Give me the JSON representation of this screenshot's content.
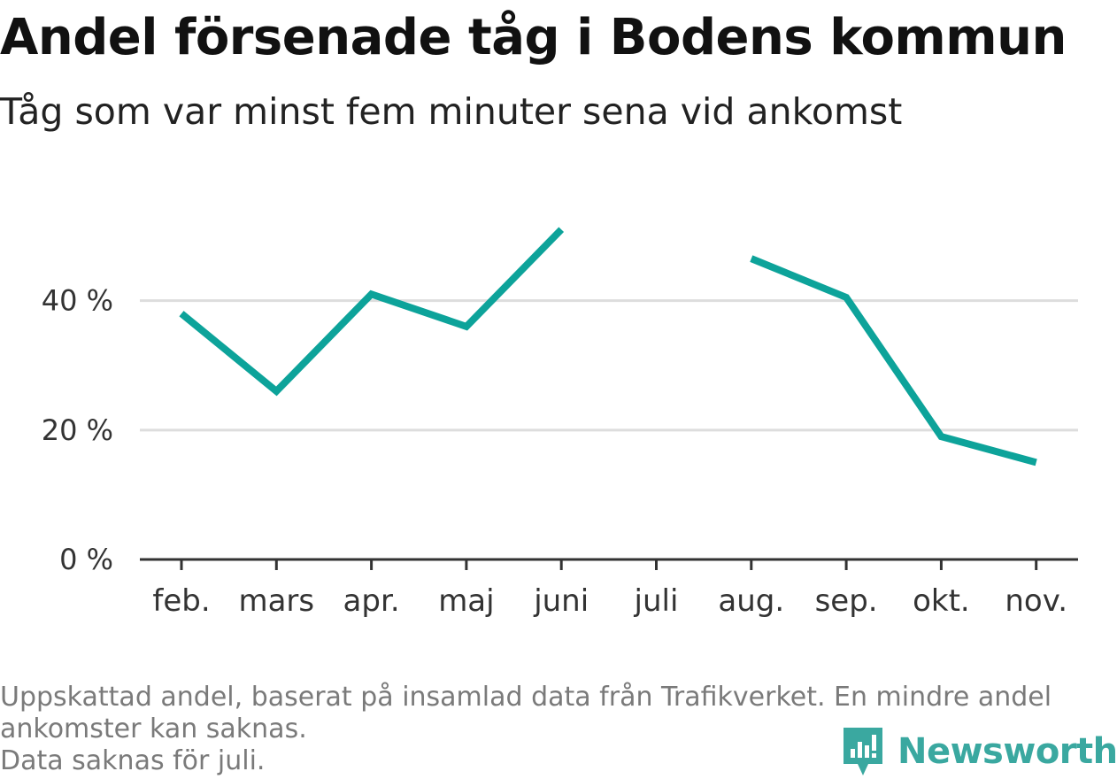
{
  "title": "Andel försenade tåg i Bodens kommun",
  "subtitle": "Tåg som var minst fem minuter sena vid ankomst",
  "footnote": {
    "line1": "Uppskattad andel, baserat på insamlad data från Trafikverket. En mindre andel",
    "line2": "ankomster kan saknas.",
    "line3": "Data saknas för juli."
  },
  "brand": {
    "name": "Newsworthy",
    "color": "#3aa8a0"
  },
  "colors": {
    "line": "#0da39a",
    "grid": "#dddddd",
    "axis": "#333333"
  },
  "chart_data": {
    "type": "line",
    "categories": [
      "feb.",
      "mars",
      "apr.",
      "maj",
      "juni",
      "juli",
      "aug.",
      "sep.",
      "okt.",
      "nov."
    ],
    "series": [
      {
        "values": [
          38,
          26,
          41,
          36,
          51,
          null,
          46.5,
          40.5,
          19,
          15
        ]
      }
    ],
    "ylim": [
      0,
      55
    ],
    "yticks": [
      0,
      20,
      40
    ],
    "ytick_labels": [
      "0 %",
      "20 %",
      "40 %"
    ],
    "grid": true,
    "xlabel": "",
    "ylabel": ""
  }
}
